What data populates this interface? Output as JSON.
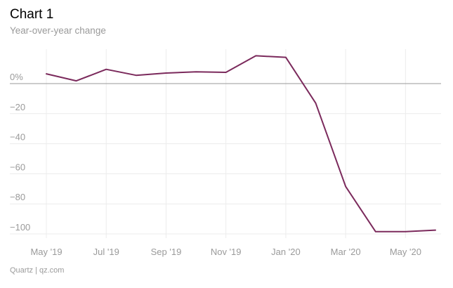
{
  "title": "Chart 1",
  "subtitle": "Year-over-year change",
  "source": "Quartz | qz.com",
  "chart_data": {
    "type": "line",
    "title": "Chart 1",
    "subtitle": "Year-over-year change",
    "xlabel": "",
    "ylabel": "",
    "x": [
      "2019-05",
      "2019-06",
      "2019-07",
      "2019-08",
      "2019-09",
      "2019-10",
      "2019-11",
      "2019-12",
      "2020-01",
      "2020-02",
      "2020-03",
      "2020-04",
      "2020-05",
      "2020-06"
    ],
    "series": [
      {
        "values": [
          6.5,
          1.8,
          9.5,
          5.5,
          7,
          7.8,
          7.5,
          18.5,
          17.5,
          -13,
          -68.5,
          -98.5,
          -98.5,
          -97.5
        ],
        "color": "#7b2a5c"
      }
    ],
    "xticks": [
      {
        "x": "2019-05",
        "label": "May '19"
      },
      {
        "x": "2019-07",
        "label": "Jul '19"
      },
      {
        "x": "2019-09",
        "label": "Sep '19"
      },
      {
        "x": "2019-11",
        "label": "Nov '19"
      },
      {
        "x": "2020-01",
        "label": "Jan '20"
      },
      {
        "x": "2020-03",
        "label": "Mar '20"
      },
      {
        "x": "2020-05",
        "label": "May '20"
      }
    ],
    "yticks": [
      {
        "value": 0,
        "label": "0%"
      },
      {
        "value": -20,
        "label": "−20"
      },
      {
        "value": -40,
        "label": "−40"
      },
      {
        "value": -60,
        "label": "−60"
      },
      {
        "value": -80,
        "label": "−80"
      },
      {
        "value": -100,
        "label": "−100"
      }
    ],
    "xlim": [
      "2019-05",
      "2020-06"
    ],
    "ylim": [
      -100,
      20
    ],
    "grid": true,
    "zero_line": true,
    "legend": "none"
  }
}
